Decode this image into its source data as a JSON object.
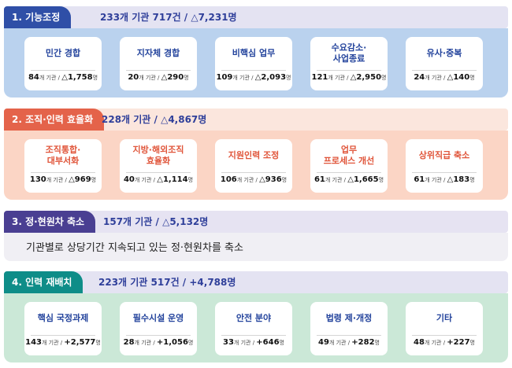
{
  "sections": [
    {
      "tab": "1. 기능조정",
      "summary": "233개 기관 717건 / △7,231명",
      "cards": [
        {
          "title": "민간 경합",
          "count": "84",
          "unit": "개 기관 / ",
          "delta": "△1,758",
          "suffix": "명"
        },
        {
          "title": "지자체 경합",
          "count": "20",
          "unit": "개 기관 / ",
          "delta": "△290",
          "suffix": "명"
        },
        {
          "title": "비핵심 업무",
          "count": "109",
          "unit": "개 기관 / ",
          "delta": "△2,093",
          "suffix": "명"
        },
        {
          "title": "수요감소·\n사업종료",
          "count": "121",
          "unit": "개 기관 / ",
          "delta": "△2,950",
          "suffix": "명"
        },
        {
          "title": "유사·중복",
          "count": "24",
          "unit": "개 기관 / ",
          "delta": "△140",
          "suffix": "명"
        }
      ]
    },
    {
      "tab": "2. 조직·인력 효율화",
      "summary": "228개 기관 / △4,867명",
      "cards": [
        {
          "title": "조직통합·\n대부서화",
          "count": "130",
          "unit": "개 기관 / ",
          "delta": "△969",
          "suffix": "명"
        },
        {
          "title": "지방·해외조직\n효율화",
          "count": "40",
          "unit": "개 기관 / ",
          "delta": "△1,114",
          "suffix": "명"
        },
        {
          "title": "지원인력 조정",
          "count": "106",
          "unit": "개 기관 / ",
          "delta": "△936",
          "suffix": "명"
        },
        {
          "title": "업무\n프로세스 개선",
          "count": "61",
          "unit": "개 기관 / ",
          "delta": "△1,665",
          "suffix": "명"
        },
        {
          "title": "상위직급 축소",
          "count": "61",
          "unit": "개 기관 / ",
          "delta": "△183",
          "suffix": "명"
        }
      ]
    },
    {
      "tab": "3. 정·현원차 축소",
      "summary": "157개 기관 / △5,132명",
      "note": "기관별로 상당기간 지속되고 있는 정·현원차를 축소"
    },
    {
      "tab": "4. 인력 재배치",
      "summary": "223개 기관 517건 / +4,788명",
      "cards": [
        {
          "title": "핵심 국정과제",
          "count": "143",
          "unit": "개 기관 / ",
          "delta": "+2,577",
          "suffix": "명"
        },
        {
          "title": "필수시설 운영",
          "count": "28",
          "unit": "개 기관 / ",
          "delta": "+1,056",
          "suffix": "명"
        },
        {
          "title": "안전 분야",
          "count": "33",
          "unit": "개 기관 / ",
          "delta": "+646",
          "suffix": "명"
        },
        {
          "title": "법령 제·개정",
          "count": "49",
          "unit": "개 기관 / ",
          "delta": "+282",
          "suffix": "명"
        },
        {
          "title": "기타",
          "count": "48",
          "unit": "개 기관 / ",
          "delta": "+227",
          "suffix": "명"
        }
      ]
    }
  ]
}
